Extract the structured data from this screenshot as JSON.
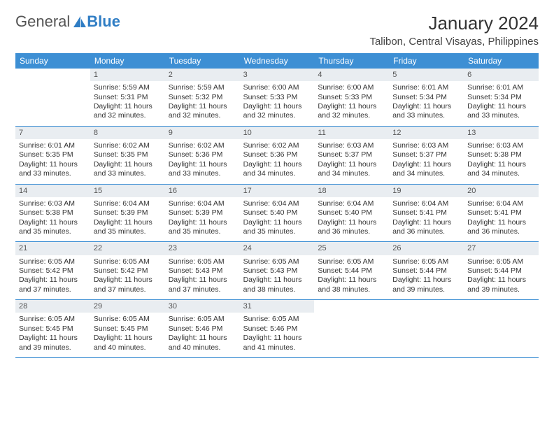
{
  "logo": {
    "text1": "General",
    "text2": "Blue"
  },
  "title": "January 2024",
  "location": "Talibon, Central Visayas, Philippines",
  "columns": [
    "Sunday",
    "Monday",
    "Tuesday",
    "Wednesday",
    "Thursday",
    "Friday",
    "Saturday"
  ],
  "colors": {
    "header_bg": "#3d8fd4",
    "header_text": "#ffffff",
    "daynum_bg": "#e9edf1",
    "rule": "#3d8fd4",
    "accent": "#2f7dc4"
  },
  "weeks": [
    [
      {
        "n": "",
        "sr": "",
        "ss": "",
        "dl": ""
      },
      {
        "n": "1",
        "sr": "Sunrise: 5:59 AM",
        "ss": "Sunset: 5:31 PM",
        "dl": "Daylight: 11 hours and 32 minutes."
      },
      {
        "n": "2",
        "sr": "Sunrise: 5:59 AM",
        "ss": "Sunset: 5:32 PM",
        "dl": "Daylight: 11 hours and 32 minutes."
      },
      {
        "n": "3",
        "sr": "Sunrise: 6:00 AM",
        "ss": "Sunset: 5:33 PM",
        "dl": "Daylight: 11 hours and 32 minutes."
      },
      {
        "n": "4",
        "sr": "Sunrise: 6:00 AM",
        "ss": "Sunset: 5:33 PM",
        "dl": "Daylight: 11 hours and 32 minutes."
      },
      {
        "n": "5",
        "sr": "Sunrise: 6:01 AM",
        "ss": "Sunset: 5:34 PM",
        "dl": "Daylight: 11 hours and 33 minutes."
      },
      {
        "n": "6",
        "sr": "Sunrise: 6:01 AM",
        "ss": "Sunset: 5:34 PM",
        "dl": "Daylight: 11 hours and 33 minutes."
      }
    ],
    [
      {
        "n": "7",
        "sr": "Sunrise: 6:01 AM",
        "ss": "Sunset: 5:35 PM",
        "dl": "Daylight: 11 hours and 33 minutes."
      },
      {
        "n": "8",
        "sr": "Sunrise: 6:02 AM",
        "ss": "Sunset: 5:35 PM",
        "dl": "Daylight: 11 hours and 33 minutes."
      },
      {
        "n": "9",
        "sr": "Sunrise: 6:02 AM",
        "ss": "Sunset: 5:36 PM",
        "dl": "Daylight: 11 hours and 33 minutes."
      },
      {
        "n": "10",
        "sr": "Sunrise: 6:02 AM",
        "ss": "Sunset: 5:36 PM",
        "dl": "Daylight: 11 hours and 34 minutes."
      },
      {
        "n": "11",
        "sr": "Sunrise: 6:03 AM",
        "ss": "Sunset: 5:37 PM",
        "dl": "Daylight: 11 hours and 34 minutes."
      },
      {
        "n": "12",
        "sr": "Sunrise: 6:03 AM",
        "ss": "Sunset: 5:37 PM",
        "dl": "Daylight: 11 hours and 34 minutes."
      },
      {
        "n": "13",
        "sr": "Sunrise: 6:03 AM",
        "ss": "Sunset: 5:38 PM",
        "dl": "Daylight: 11 hours and 34 minutes."
      }
    ],
    [
      {
        "n": "14",
        "sr": "Sunrise: 6:03 AM",
        "ss": "Sunset: 5:38 PM",
        "dl": "Daylight: 11 hours and 35 minutes."
      },
      {
        "n": "15",
        "sr": "Sunrise: 6:04 AM",
        "ss": "Sunset: 5:39 PM",
        "dl": "Daylight: 11 hours and 35 minutes."
      },
      {
        "n": "16",
        "sr": "Sunrise: 6:04 AM",
        "ss": "Sunset: 5:39 PM",
        "dl": "Daylight: 11 hours and 35 minutes."
      },
      {
        "n": "17",
        "sr": "Sunrise: 6:04 AM",
        "ss": "Sunset: 5:40 PM",
        "dl": "Daylight: 11 hours and 35 minutes."
      },
      {
        "n": "18",
        "sr": "Sunrise: 6:04 AM",
        "ss": "Sunset: 5:40 PM",
        "dl": "Daylight: 11 hours and 36 minutes."
      },
      {
        "n": "19",
        "sr": "Sunrise: 6:04 AM",
        "ss": "Sunset: 5:41 PM",
        "dl": "Daylight: 11 hours and 36 minutes."
      },
      {
        "n": "20",
        "sr": "Sunrise: 6:04 AM",
        "ss": "Sunset: 5:41 PM",
        "dl": "Daylight: 11 hours and 36 minutes."
      }
    ],
    [
      {
        "n": "21",
        "sr": "Sunrise: 6:05 AM",
        "ss": "Sunset: 5:42 PM",
        "dl": "Daylight: 11 hours and 37 minutes."
      },
      {
        "n": "22",
        "sr": "Sunrise: 6:05 AM",
        "ss": "Sunset: 5:42 PM",
        "dl": "Daylight: 11 hours and 37 minutes."
      },
      {
        "n": "23",
        "sr": "Sunrise: 6:05 AM",
        "ss": "Sunset: 5:43 PM",
        "dl": "Daylight: 11 hours and 37 minutes."
      },
      {
        "n": "24",
        "sr": "Sunrise: 6:05 AM",
        "ss": "Sunset: 5:43 PM",
        "dl": "Daylight: 11 hours and 38 minutes."
      },
      {
        "n": "25",
        "sr": "Sunrise: 6:05 AM",
        "ss": "Sunset: 5:44 PM",
        "dl": "Daylight: 11 hours and 38 minutes."
      },
      {
        "n": "26",
        "sr": "Sunrise: 6:05 AM",
        "ss": "Sunset: 5:44 PM",
        "dl": "Daylight: 11 hours and 39 minutes."
      },
      {
        "n": "27",
        "sr": "Sunrise: 6:05 AM",
        "ss": "Sunset: 5:44 PM",
        "dl": "Daylight: 11 hours and 39 minutes."
      }
    ],
    [
      {
        "n": "28",
        "sr": "Sunrise: 6:05 AM",
        "ss": "Sunset: 5:45 PM",
        "dl": "Daylight: 11 hours and 39 minutes."
      },
      {
        "n": "29",
        "sr": "Sunrise: 6:05 AM",
        "ss": "Sunset: 5:45 PM",
        "dl": "Daylight: 11 hours and 40 minutes."
      },
      {
        "n": "30",
        "sr": "Sunrise: 6:05 AM",
        "ss": "Sunset: 5:46 PM",
        "dl": "Daylight: 11 hours and 40 minutes."
      },
      {
        "n": "31",
        "sr": "Sunrise: 6:05 AM",
        "ss": "Sunset: 5:46 PM",
        "dl": "Daylight: 11 hours and 41 minutes."
      },
      {
        "n": "",
        "sr": "",
        "ss": "",
        "dl": ""
      },
      {
        "n": "",
        "sr": "",
        "ss": "",
        "dl": ""
      },
      {
        "n": "",
        "sr": "",
        "ss": "",
        "dl": ""
      }
    ]
  ]
}
